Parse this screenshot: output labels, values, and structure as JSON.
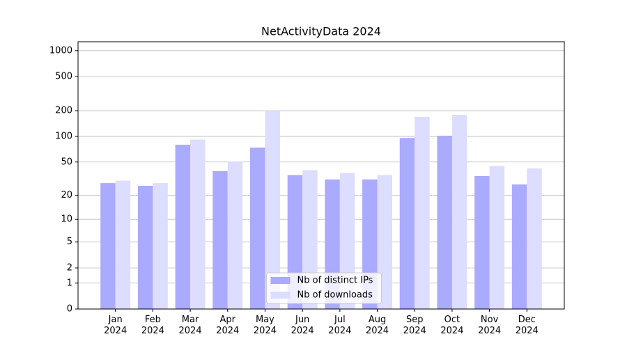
{
  "chart_data": {
    "type": "bar",
    "title": "NetActivityData 2024",
    "categories": [
      "Jan 2024",
      "Feb 2024",
      "Mar 2024",
      "Apr 2024",
      "May 2024",
      "Jun 2024",
      "Jul 2024",
      "Aug 2024",
      "Sep 2024",
      "Oct 2024",
      "Nov 2024",
      "Dec 2024"
    ],
    "series": [
      {
        "name": "Nb of distinct IPs",
        "color": "#aaaaff",
        "values": [
          28,
          26,
          80,
          39,
          74,
          35,
          31,
          31,
          96,
          102,
          34,
          27
        ]
      },
      {
        "name": "Nb of downloads",
        "color": "#ddddff",
        "values": [
          30,
          28,
          92,
          51,
          200,
          40,
          37,
          35,
          170,
          179,
          45,
          42
        ]
      }
    ],
    "yscale": "log1p",
    "ylim": [
      0,
      1270
    ],
    "yticks": [
      0,
      1,
      2,
      5,
      10,
      20,
      50,
      100,
      200,
      500,
      1000
    ],
    "grid": true,
    "legend": "lower center"
  }
}
